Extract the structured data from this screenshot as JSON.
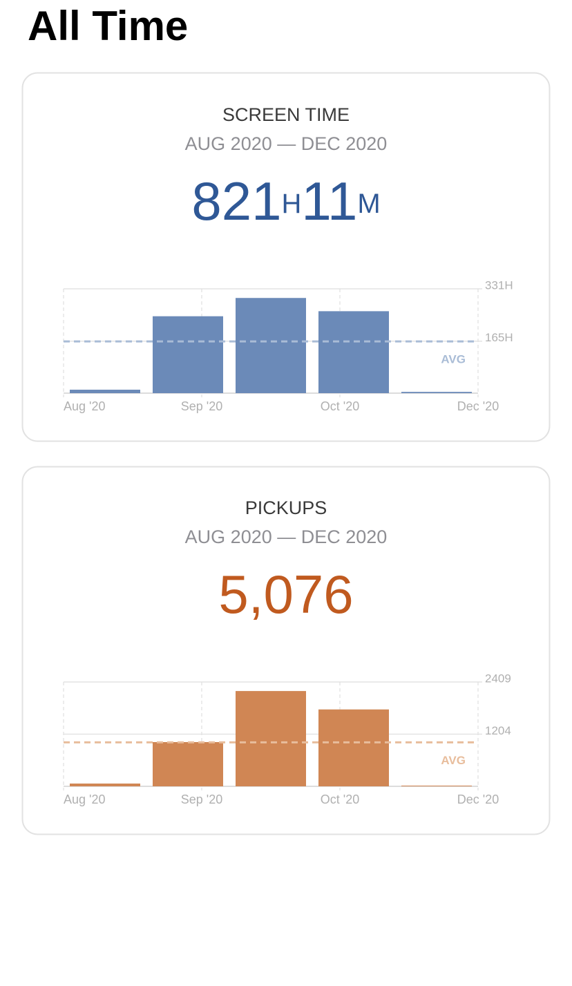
{
  "title": "All Time",
  "chart_data": [
    {
      "type": "bar",
      "title": "SCREEN TIME",
      "subtitle": "AUG 2020 — DEC 2020",
      "total": [
        "821",
        "H",
        "11",
        "M"
      ],
      "total_color": "#2f5896",
      "categories": [
        null,
        null,
        null,
        null,
        null
      ],
      "values": [
        11,
        244,
        302,
        260,
        4
      ],
      "color": "#6b8ab8",
      "ylim": [
        0,
        331
      ],
      "yticks": [
        {
          "value": 331,
          "label": "331H"
        },
        {
          "value": 165,
          "label": "165H"
        }
      ],
      "xlim": [
        0,
        3
      ],
      "xticks": [
        {
          "value": 0,
          "label": "Aug '20"
        },
        {
          "value": 1,
          "label": "Sep '20"
        },
        {
          "value": 2,
          "label": "Oct '20"
        },
        {
          "value": 3,
          "label": "Dec '20"
        }
      ],
      "avg": 164,
      "avg_label": "AVG",
      "avg_color": "#a9bcd6",
      "grid": true
    },
    {
      "type": "bar",
      "title": "PICKUPS",
      "subtitle": "AUG 2020 — DEC 2020",
      "total": [
        "5,076"
      ],
      "total_color": "#c05a1f",
      "categories": [
        null,
        null,
        null,
        null,
        null
      ],
      "values": [
        64,
        1021,
        2200,
        1775,
        16
      ],
      "color": "#d08654",
      "ylim": [
        0,
        2409
      ],
      "yticks": [
        2409,
        1204
      ],
      "xlim": [
        0,
        3
      ],
      "xticks": [
        {
          "value": 0,
          "label": "Aug '20"
        },
        {
          "value": 1,
          "label": "Sep '20"
        },
        {
          "value": 2,
          "label": "Oct '20"
        },
        {
          "value": 3,
          "label": "Dec '20"
        }
      ],
      "avg": 1015,
      "avg_label": "AVG",
      "avg_color": "#e8bd9c",
      "grid": true
    }
  ]
}
